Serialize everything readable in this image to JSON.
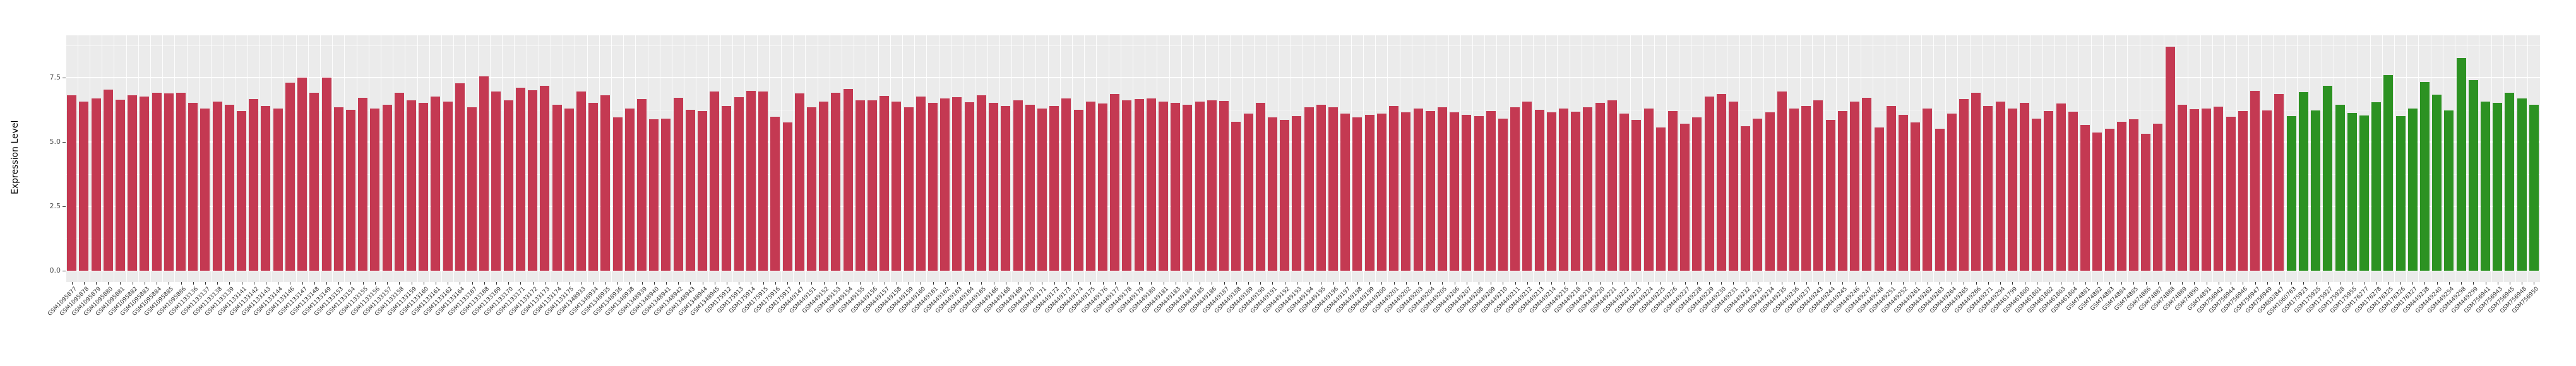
{
  "chart_data": {
    "type": "bar",
    "title": "",
    "xlabel": "",
    "ylabel": "Expression Level",
    "ylim": [
      0,
      9.13
    ],
    "yticks": [
      0.0,
      2.5,
      5.0,
      7.5
    ],
    "ytick_labels": [
      "0.0",
      "2.5",
      "5.0",
      "7.5"
    ],
    "yminor_ticks": [
      1.25,
      3.75,
      6.25,
      8.75
    ],
    "grid": true,
    "legend_position": "none",
    "panel_background": "#EBEBEB",
    "grid_color": "#FFFFFF",
    "bar_colors": {
      "red": "#C43952",
      "green": "#2C9222"
    },
    "green_from_index": 183,
    "categories": [
      "GSM1095877",
      "GSM1095878",
      "GSM1095879",
      "GSM1095880",
      "GSM1095881",
      "GSM1095882",
      "GSM1095883",
      "GSM1095884",
      "GSM1095885",
      "GSM1095886",
      "GSM1133136",
      "GSM1133137",
      "GSM1133138",
      "GSM1133139",
      "GSM1133141",
      "GSM1133142",
      "GSM1133143",
      "GSM1133144",
      "GSM1133146",
      "GSM1133147",
      "GSM1133148",
      "GSM1133149",
      "GSM1133153",
      "GSM1133154",
      "GSM1133155",
      "GSM1133156",
      "GSM1133157",
      "GSM1133158",
      "GSM1133159",
      "GSM1133160",
      "GSM1133161",
      "GSM1133162",
      "GSM1133164",
      "GSM1133167",
      "GSM1133168",
      "GSM1133169",
      "GSM1133170",
      "GSM1133171",
      "GSM1133172",
      "GSM1133173",
      "GSM1133174",
      "GSM1133175",
      "GSM1348933",
      "GSM1348934",
      "GSM1348935",
      "GSM1348936",
      "GSM1348938",
      "GSM1348939",
      "GSM1348940",
      "GSM1348941",
      "GSM1348942",
      "GSM1348943",
      "GSM1348944",
      "GSM1348945",
      "GSM175912",
      "GSM175913",
      "GSM175914",
      "GSM175915",
      "GSM175916",
      "GSM175917",
      "GSM449147",
      "GSM449151",
      "GSM449152",
      "GSM449153",
      "GSM449154",
      "GSM449155",
      "GSM449156",
      "GSM449157",
      "GSM449158",
      "GSM449159",
      "GSM449160",
      "GSM449161",
      "GSM449162",
      "GSM449163",
      "GSM449164",
      "GSM449165",
      "GSM449166",
      "GSM449168",
      "GSM449169",
      "GSM449170",
      "GSM449171",
      "GSM449172",
      "GSM449173",
      "GSM449174",
      "GSM449175",
      "GSM449176",
      "GSM449177",
      "GSM449178",
      "GSM449179",
      "GSM449180",
      "GSM449181",
      "GSM449183",
      "GSM449184",
      "GSM449185",
      "GSM449186",
      "GSM449187",
      "GSM449188",
      "GSM449189",
      "GSM449190",
      "GSM449191",
      "GSM449192",
      "GSM449193",
      "GSM449194",
      "GSM449195",
      "GSM449196",
      "GSM449197",
      "GSM449198",
      "GSM449199",
      "GSM449200",
      "GSM449201",
      "GSM449202",
      "GSM449203",
      "GSM449204",
      "GSM449205",
      "GSM449206",
      "GSM449207",
      "GSM449208",
      "GSM449209",
      "GSM449210",
      "GSM449211",
      "GSM449212",
      "GSM449213",
      "GSM449214",
      "GSM449215",
      "GSM449218",
      "GSM449219",
      "GSM449220",
      "GSM449221",
      "GSM449222",
      "GSM449223",
      "GSM449224",
      "GSM449225",
      "GSM449226",
      "GSM449227",
      "GSM449228",
      "GSM449229",
      "GSM449230",
      "GSM449231",
      "GSM449232",
      "GSM449233",
      "GSM449234",
      "GSM449235",
      "GSM449236",
      "GSM449237",
      "GSM449243",
      "GSM449244",
      "GSM449245",
      "GSM449246",
      "GSM449247",
      "GSM449248",
      "GSM449251",
      "GSM449252",
      "GSM449261",
      "GSM449262",
      "GSM449263",
      "GSM449264",
      "GSM449265",
      "GSM449266",
      "GSM449271",
      "GSM449294",
      "GSM461799",
      "GSM461800",
      "GSM461801",
      "GSM461802",
      "GSM461803",
      "GSM461804",
      "GSM74881",
      "GSM74882",
      "GSM74883",
      "GSM74884",
      "GSM74885",
      "GSM74886",
      "GSM74887",
      "GSM74888",
      "GSM74889",
      "GSM74890",
      "GSM74891",
      "GSM756942",
      "GSM756944",
      "GSM756946",
      "GSM756947",
      "GSM756949",
      "GSM802847",
      "GSM1060763",
      "GSM175923",
      "GSM175925",
      "GSM175927",
      "GSM175928",
      "GSM175955",
      "GSM176277",
      "GSM176278",
      "GSM176325",
      "GSM176326",
      "GSM176327",
      "GSM449238",
      "GSM449240",
      "GSM449254",
      "GSM449298",
      "GSM449299",
      "GSM756941",
      "GSM756943",
      "GSM756945",
      "GSM756948",
      "GSM756950"
    ],
    "values": [
      6.81,
      6.57,
      6.69,
      7.03,
      6.64,
      6.8,
      6.76,
      6.91,
      6.89,
      6.91,
      6.5,
      6.3,
      6.55,
      6.45,
      6.2,
      6.65,
      6.4,
      6.3,
      7.3,
      7.48,
      6.9,
      7.5,
      6.35,
      6.25,
      6.7,
      6.3,
      6.45,
      6.9,
      6.6,
      6.5,
      6.75,
      6.55,
      7.28,
      6.34,
      7.54,
      6.96,
      6.62,
      7.09,
      6.99,
      7.17,
      6.45,
      6.28,
      6.95,
      6.52,
      6.8,
      5.95,
      6.3,
      6.65,
      5.88,
      5.9,
      6.7,
      6.25,
      6.2,
      6.95,
      6.4,
      6.72,
      6.98,
      6.95,
      5.98,
      5.75,
      6.88,
      6.35,
      6.55,
      6.9,
      7.05,
      6.6,
      6.62,
      6.79,
      6.55,
      6.34,
      6.76,
      6.5,
      6.68,
      6.72,
      6.53,
      6.8,
      6.5,
      6.38,
      6.62,
      6.45,
      6.3,
      6.4,
      6.68,
      6.25,
      6.55,
      6.48,
      6.85,
      6.6,
      6.65,
      6.68,
      6.55,
      6.5,
      6.45,
      6.55,
      6.6,
      6.58,
      5.78,
      6.1,
      6.5,
      5.95,
      5.85,
      6.0,
      6.35,
      6.45,
      6.35,
      6.1,
      5.95,
      6.05,
      6.1,
      6.4,
      6.15,
      6.3,
      6.2,
      6.35,
      6.15,
      6.05,
      6.0,
      6.2,
      5.9,
      6.35,
      6.55,
      6.25,
      6.15,
      6.3,
      6.18,
      6.35,
      6.5,
      6.62,
      6.1,
      5.85,
      6.3,
      5.55,
      6.2,
      5.7,
      5.95,
      6.75,
      6.85,
      6.55,
      5.6,
      5.9,
      6.15,
      6.95,
      6.3,
      6.4,
      6.6,
      5.85,
      6.2,
      6.55,
      6.7,
      5.55,
      6.4,
      6.05,
      5.75,
      6.3,
      5.5,
      6.1,
      6.65,
      6.9,
      6.4,
      6.55,
      6.3,
      6.5,
      5.9,
      6.2,
      6.49,
      6.18,
      5.65,
      5.35,
      5.5,
      5.77,
      5.87,
      5.3,
      5.7,
      8.69,
      6.44,
      6.26,
      6.28,
      6.37,
      5.97,
      6.19,
      6.98,
      6.23,
      6.85,
      5.99,
      6.94,
      6.21,
      7.17,
      6.44,
      6.13,
      6.03,
      6.54,
      7.6,
      5.99,
      6.28,
      7.32,
      6.83,
      6.22,
      8.25,
      7.39,
      6.55,
      6.5,
      6.91,
      6.68,
      6.45
    ]
  }
}
